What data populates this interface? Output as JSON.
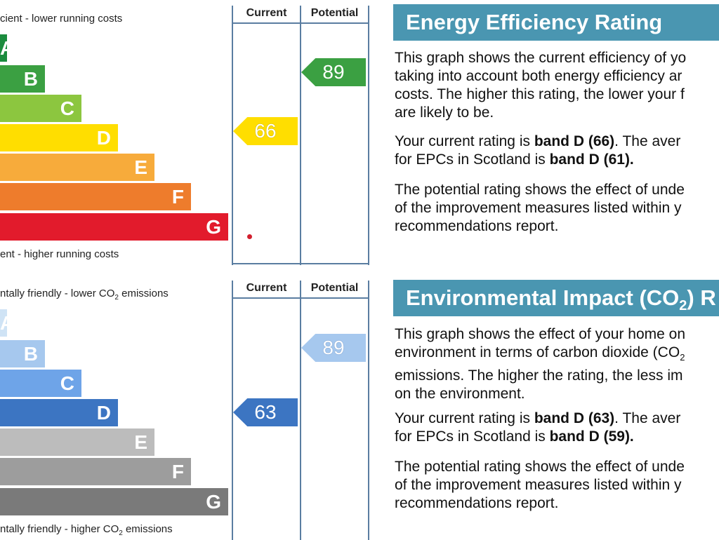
{
  "energy": {
    "top_caption": "cient - lower running costs",
    "bottom_caption": "ent - higher running costs",
    "current_header": "Current",
    "potential_header": "Potential",
    "bands": [
      {
        "letter": "A",
        "color": "#1b8c3e"
      },
      {
        "letter": "B",
        "color": "#3ba042"
      },
      {
        "letter": "C",
        "color": "#8cc63f"
      },
      {
        "letter": "D",
        "color": "#ffde00"
      },
      {
        "letter": "E",
        "color": "#f7ab3b"
      },
      {
        "letter": "F",
        "color": "#ee7c2c"
      },
      {
        "letter": "G",
        "color": "#e21b2c"
      }
    ],
    "current_value": "66",
    "current_color": "#ffde00",
    "potential_value": "89",
    "potential_color": "#3ba042",
    "panel": {
      "title": "Energy Efficiency Rating",
      "p1": [
        "This graph shows the current efficiency of yo",
        "taking into account both energy efficiency ar",
        "costs. The higher this rating, the lower your f",
        "are likely to be."
      ],
      "p2_l1_pre": "Your current rating is ",
      "p2_l1_bold": "band D (66)",
      "p2_l1_post": ". The aver",
      "p2_l2_pre": "for EPCs in Scotland is ",
      "p2_l2_bold": "band D (61).",
      "p3": [
        "The potential rating shows the effect of unde",
        "of the improvement measures listed within y",
        "recommendations report."
      ]
    }
  },
  "environment": {
    "top_caption_pre": "ntally friendly - lower CO",
    "top_caption_sub": "2",
    "top_caption_post": " emissions",
    "bottom_caption_pre": "ntally friendly - higher CO",
    "bottom_caption_sub": "2",
    "bottom_caption_post": " emissions",
    "current_header": "Current",
    "potential_header": "Potential",
    "bands": [
      {
        "letter": "A",
        "color": "#cfe3f5"
      },
      {
        "letter": "B",
        "color": "#a6c8ee"
      },
      {
        "letter": "C",
        "color": "#6ea4e8"
      },
      {
        "letter": "D",
        "color": "#3c75c2"
      },
      {
        "letter": "E",
        "color": "#bcbcbc"
      },
      {
        "letter": "F",
        "color": "#9d9d9d"
      },
      {
        "letter": "G",
        "color": "#7a7a7a"
      }
    ],
    "current_value": "63",
    "current_color": "#3c75c2",
    "potential_value": "89",
    "potential_color": "#a6c8ee",
    "panel": {
      "title_pre": "Environmental Impact (CO",
      "title_sub": "2",
      "title_post": ") R",
      "p1_l1": "This graph shows the effect of your home on",
      "p1_l2_pre": "environment in terms of carbon dioxide (CO",
      "p1_l2_sub": "2",
      "p1_l3": "emissions. The higher the rating, the less im",
      "p1_l4": "on the environment.",
      "p2_l1_pre": "Your current rating is ",
      "p2_l1_bold": "band D (63)",
      "p2_l1_post": ". The aver",
      "p2_l2_pre": "for EPCs in Scotland is ",
      "p2_l2_bold": "band D (59).",
      "p3": [
        "The potential rating shows the effect of unde",
        "of the improvement measures listed within y",
        "recommendations report."
      ]
    }
  }
}
